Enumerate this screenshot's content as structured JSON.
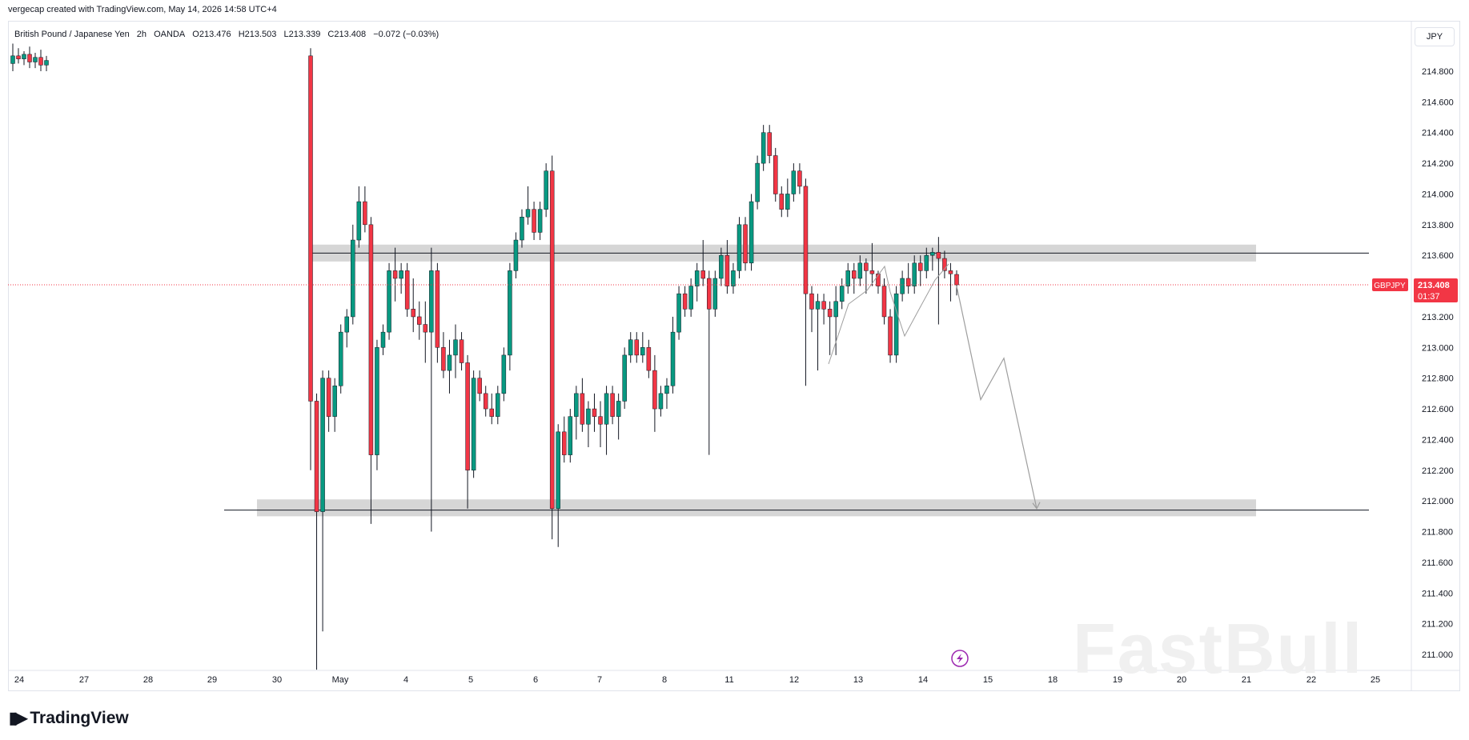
{
  "header": {
    "credit": "vergecap created with TradingView.com, May 14, 2026 14:58 UTC+4",
    "symbol_name": "British Pound / Japanese Yen",
    "interval": "2h",
    "broker": "OANDA",
    "open": "O213.476",
    "high": "H213.503",
    "low": "L213.339",
    "close": "C213.408",
    "change": "−0.072 (−0.03%)"
  },
  "price_axis": {
    "currency": "JPY",
    "ticks": [
      "214.800",
      "214.600",
      "214.400",
      "214.200",
      "214.000",
      "213.800",
      "213.600",
      "213.400",
      "213.200",
      "213.000",
      "212.800",
      "212.600",
      "212.400",
      "212.200",
      "212.000",
      "211.800",
      "211.600",
      "211.400",
      "211.200",
      "211.000"
    ],
    "last_price_label": "GBPJPY",
    "last_price": "213.408",
    "countdown": "01:37"
  },
  "time_axis": {
    "labels": [
      "24",
      "27",
      "28",
      "29",
      "30",
      "May",
      "4",
      "5",
      "6",
      "7",
      "8",
      "11",
      "12",
      "13",
      "14",
      "15",
      "18",
      "19",
      "20",
      "21",
      "22",
      "25"
    ]
  },
  "branding": {
    "logo_text": "TradingView",
    "watermark": "FastBull"
  },
  "colors": {
    "up": "#089981",
    "down": "#f23645",
    "zone": "#d1d1d1",
    "last_price": "#f23645"
  },
  "chart_data": {
    "type": "candlestick",
    "title": "British Pound / Japanese Yen · 2h · OANDA",
    "ylim": [
      210.9,
      214.95
    ],
    "last_close": 213.408,
    "zones": [
      {
        "name": "resistance",
        "from": 213.56,
        "to": 213.67
      },
      {
        "name": "support",
        "from": 211.9,
        "to": 212.01
      }
    ],
    "horizontal_lines": [
      213.615,
      211.94
    ],
    "projection": [
      {
        "t": "May 14",
        "y": 213.4
      },
      {
        "t": "May 15",
        "y": 212.66
      },
      {
        "t": "May 15",
        "y": 212.93
      },
      {
        "t": "May 18",
        "y": 211.95
      }
    ],
    "candles": [
      {
        "o": 214.85,
        "h": 214.98,
        "l": 214.8,
        "c": 214.9
      },
      {
        "o": 214.9,
        "h": 214.95,
        "l": 214.85,
        "c": 214.88
      },
      {
        "o": 214.88,
        "h": 214.93,
        "l": 214.84,
        "c": 214.91
      },
      {
        "o": 214.91,
        "h": 214.96,
        "l": 214.82,
        "c": 214.86
      },
      {
        "o": 214.86,
        "h": 214.92,
        "l": 214.82,
        "c": 214.89
      },
      {
        "o": 214.89,
        "h": 214.94,
        "l": 214.8,
        "c": 214.84
      },
      {
        "o": 214.84,
        "h": 214.9,
        "l": 214.8,
        "c": 214.87
      },
      {
        "o": 214.9,
        "h": 214.95,
        "l": 212.2,
        "c": 212.65
      },
      {
        "o": 212.65,
        "h": 212.7,
        "l": 210.9,
        "c": 211.93
      },
      {
        "o": 211.93,
        "h": 212.85,
        "l": 211.15,
        "c": 212.8
      },
      {
        "o": 212.8,
        "h": 212.85,
        "l": 212.45,
        "c": 212.55
      },
      {
        "o": 212.55,
        "h": 212.8,
        "l": 212.45,
        "c": 212.75
      },
      {
        "o": 212.75,
        "h": 213.15,
        "l": 212.7,
        "c": 213.1
      },
      {
        "o": 213.1,
        "h": 213.25,
        "l": 213.0,
        "c": 213.2
      },
      {
        "o": 213.2,
        "h": 213.8,
        "l": 213.15,
        "c": 213.7
      },
      {
        "o": 213.7,
        "h": 214.05,
        "l": 213.65,
        "c": 213.95
      },
      {
        "o": 213.95,
        "h": 214.05,
        "l": 213.75,
        "c": 213.8
      },
      {
        "o": 213.8,
        "h": 213.85,
        "l": 211.85,
        "c": 212.3
      },
      {
        "o": 212.3,
        "h": 213.05,
        "l": 212.2,
        "c": 213.0
      },
      {
        "o": 213.0,
        "h": 213.15,
        "l": 212.95,
        "c": 213.1
      },
      {
        "o": 213.1,
        "h": 213.55,
        "l": 213.05,
        "c": 213.5
      },
      {
        "o": 213.5,
        "h": 213.65,
        "l": 213.3,
        "c": 213.45
      },
      {
        "o": 213.45,
        "h": 213.55,
        "l": 213.35,
        "c": 213.5
      },
      {
        "o": 213.5,
        "h": 213.55,
        "l": 213.2,
        "c": 213.25
      },
      {
        "o": 213.25,
        "h": 213.45,
        "l": 213.1,
        "c": 213.2
      },
      {
        "o": 213.2,
        "h": 213.3,
        "l": 213.05,
        "c": 213.15
      },
      {
        "o": 213.15,
        "h": 213.3,
        "l": 212.9,
        "c": 213.1
      },
      {
        "o": 213.1,
        "h": 213.65,
        "l": 211.8,
        "c": 213.5
      },
      {
        "o": 213.5,
        "h": 213.55,
        "l": 212.9,
        "c": 213.0
      },
      {
        "o": 213.0,
        "h": 213.1,
        "l": 212.8,
        "c": 212.85
      },
      {
        "o": 212.85,
        "h": 213.05,
        "l": 212.7,
        "c": 212.95
      },
      {
        "o": 212.95,
        "h": 213.15,
        "l": 212.8,
        "c": 213.05
      },
      {
        "o": 213.05,
        "h": 213.1,
        "l": 212.85,
        "c": 212.9
      },
      {
        "o": 212.9,
        "h": 212.95,
        "l": 211.95,
        "c": 212.2
      },
      {
        "o": 212.2,
        "h": 212.85,
        "l": 212.15,
        "c": 212.8
      },
      {
        "o": 212.8,
        "h": 212.85,
        "l": 212.65,
        "c": 212.7
      },
      {
        "o": 212.7,
        "h": 212.75,
        "l": 212.55,
        "c": 212.6
      },
      {
        "o": 212.6,
        "h": 212.7,
        "l": 212.5,
        "c": 212.55
      },
      {
        "o": 212.55,
        "h": 212.75,
        "l": 212.5,
        "c": 212.7
      },
      {
        "o": 212.7,
        "h": 213.0,
        "l": 212.65,
        "c": 212.95
      },
      {
        "o": 212.95,
        "h": 213.55,
        "l": 212.85,
        "c": 213.5
      },
      {
        "o": 213.5,
        "h": 213.75,
        "l": 213.45,
        "c": 213.7
      },
      {
        "o": 213.7,
        "h": 213.9,
        "l": 213.65,
        "c": 213.85
      },
      {
        "o": 213.85,
        "h": 214.05,
        "l": 213.8,
        "c": 213.9
      },
      {
        "o": 213.9,
        "h": 213.95,
        "l": 213.7,
        "c": 213.75
      },
      {
        "o": 213.75,
        "h": 213.95,
        "l": 213.7,
        "c": 213.9
      },
      {
        "o": 213.9,
        "h": 214.2,
        "l": 213.85,
        "c": 214.15
      },
      {
        "o": 214.15,
        "h": 214.25,
        "l": 211.75,
        "c": 211.95
      },
      {
        "o": 211.95,
        "h": 212.5,
        "l": 211.7,
        "c": 212.45
      },
      {
        "o": 212.45,
        "h": 212.55,
        "l": 212.25,
        "c": 212.3
      },
      {
        "o": 212.3,
        "h": 212.6,
        "l": 212.25,
        "c": 212.55
      },
      {
        "o": 212.55,
        "h": 212.75,
        "l": 212.4,
        "c": 212.7
      },
      {
        "o": 212.7,
        "h": 212.8,
        "l": 212.45,
        "c": 212.5
      },
      {
        "o": 212.5,
        "h": 212.65,
        "l": 212.35,
        "c": 212.6
      },
      {
        "o": 212.6,
        "h": 212.7,
        "l": 212.45,
        "c": 212.55
      },
      {
        "o": 212.55,
        "h": 212.65,
        "l": 212.35,
        "c": 212.5
      },
      {
        "o": 212.5,
        "h": 212.75,
        "l": 212.3,
        "c": 212.7
      },
      {
        "o": 212.7,
        "h": 212.75,
        "l": 212.5,
        "c": 212.55
      },
      {
        "o": 212.55,
        "h": 212.7,
        "l": 212.4,
        "c": 212.65
      },
      {
        "o": 212.65,
        "h": 213.0,
        "l": 212.6,
        "c": 212.95
      },
      {
        "o": 212.95,
        "h": 213.1,
        "l": 212.9,
        "c": 213.05
      },
      {
        "o": 213.05,
        "h": 213.1,
        "l": 212.9,
        "c": 212.95
      },
      {
        "o": 212.95,
        "h": 213.1,
        "l": 212.9,
        "c": 213.0
      },
      {
        "o": 213.0,
        "h": 213.05,
        "l": 212.8,
        "c": 212.85
      },
      {
        "o": 212.85,
        "h": 212.95,
        "l": 212.45,
        "c": 212.6
      },
      {
        "o": 212.6,
        "h": 212.75,
        "l": 212.55,
        "c": 212.7
      },
      {
        "o": 212.7,
        "h": 212.8,
        "l": 212.6,
        "c": 212.75
      },
      {
        "o": 212.75,
        "h": 213.2,
        "l": 212.7,
        "c": 213.1
      },
      {
        "o": 213.1,
        "h": 213.4,
        "l": 213.05,
        "c": 213.35
      },
      {
        "o": 213.35,
        "h": 213.4,
        "l": 213.2,
        "c": 213.25
      },
      {
        "o": 213.25,
        "h": 213.45,
        "l": 213.2,
        "c": 213.4
      },
      {
        "o": 213.4,
        "h": 213.55,
        "l": 213.3,
        "c": 213.5
      },
      {
        "o": 213.5,
        "h": 213.7,
        "l": 213.4,
        "c": 213.45
      },
      {
        "o": 213.45,
        "h": 213.5,
        "l": 212.3,
        "c": 213.25
      },
      {
        "o": 213.25,
        "h": 213.5,
        "l": 213.2,
        "c": 213.45
      },
      {
        "o": 213.45,
        "h": 213.65,
        "l": 213.4,
        "c": 213.6
      },
      {
        "o": 213.6,
        "h": 213.7,
        "l": 213.35,
        "c": 213.4
      },
      {
        "o": 213.4,
        "h": 213.55,
        "l": 213.35,
        "c": 213.5
      },
      {
        "o": 213.5,
        "h": 213.85,
        "l": 213.45,
        "c": 213.8
      },
      {
        "o": 213.8,
        "h": 213.85,
        "l": 213.5,
        "c": 213.55
      },
      {
        "o": 213.55,
        "h": 214.0,
        "l": 213.5,
        "c": 213.95
      },
      {
        "o": 213.95,
        "h": 214.25,
        "l": 213.9,
        "c": 214.2
      },
      {
        "o": 214.2,
        "h": 214.45,
        "l": 214.15,
        "c": 214.4
      },
      {
        "o": 214.4,
        "h": 214.45,
        "l": 214.2,
        "c": 214.25
      },
      {
        "o": 214.25,
        "h": 214.3,
        "l": 213.95,
        "c": 214.0
      },
      {
        "o": 214.0,
        "h": 214.05,
        "l": 213.85,
        "c": 213.9
      },
      {
        "o": 213.9,
        "h": 214.1,
        "l": 213.85,
        "c": 214.0
      },
      {
        "o": 214.0,
        "h": 214.2,
        "l": 213.95,
        "c": 214.15
      },
      {
        "o": 214.15,
        "h": 214.2,
        "l": 214.0,
        "c": 214.05
      },
      {
        "o": 214.05,
        "h": 214.1,
        "l": 212.75,
        "c": 213.35
      },
      {
        "o": 213.35,
        "h": 213.4,
        "l": 213.1,
        "c": 213.25
      },
      {
        "o": 213.25,
        "h": 213.35,
        "l": 212.85,
        "c": 213.3
      },
      {
        "o": 213.3,
        "h": 213.35,
        "l": 213.15,
        "c": 213.25
      },
      {
        "o": 213.25,
        "h": 213.3,
        "l": 212.95,
        "c": 213.2
      },
      {
        "o": 213.2,
        "h": 213.4,
        "l": 212.95,
        "c": 213.3
      },
      {
        "o": 213.3,
        "h": 213.45,
        "l": 213.25,
        "c": 213.4
      },
      {
        "o": 213.4,
        "h": 213.55,
        "l": 213.35,
        "c": 213.5
      },
      {
        "o": 213.5,
        "h": 213.55,
        "l": 213.35,
        "c": 213.45
      },
      {
        "o": 213.45,
        "h": 213.6,
        "l": 213.4,
        "c": 213.55
      },
      {
        "o": 213.55,
        "h": 213.58,
        "l": 213.35,
        "c": 213.5
      },
      {
        "o": 213.5,
        "h": 213.68,
        "l": 213.4,
        "c": 213.48
      },
      {
        "o": 213.48,
        "h": 213.5,
        "l": 213.35,
        "c": 213.4
      },
      {
        "o": 213.4,
        "h": 213.45,
        "l": 213.15,
        "c": 213.2
      },
      {
        "o": 213.2,
        "h": 213.25,
        "l": 212.9,
        "c": 212.95
      },
      {
        "o": 212.95,
        "h": 213.4,
        "l": 212.9,
        "c": 213.35
      },
      {
        "o": 213.35,
        "h": 213.5,
        "l": 213.3,
        "c": 213.45
      },
      {
        "o": 213.45,
        "h": 213.55,
        "l": 213.35,
        "c": 213.4
      },
      {
        "o": 213.4,
        "h": 213.6,
        "l": 213.35,
        "c": 213.55
      },
      {
        "o": 213.55,
        "h": 213.6,
        "l": 213.4,
        "c": 213.5
      },
      {
        "o": 213.5,
        "h": 213.65,
        "l": 213.45,
        "c": 213.6
      },
      {
        "o": 213.6,
        "h": 213.65,
        "l": 213.5,
        "c": 213.62
      },
      {
        "o": 213.62,
        "h": 213.72,
        "l": 213.15,
        "c": 213.58
      },
      {
        "o": 213.58,
        "h": 213.63,
        "l": 213.45,
        "c": 213.5
      },
      {
        "o": 213.5,
        "h": 213.55,
        "l": 213.3,
        "c": 213.48
      },
      {
        "o": 213.476,
        "h": 213.503,
        "l": 213.339,
        "c": 213.408
      }
    ]
  }
}
